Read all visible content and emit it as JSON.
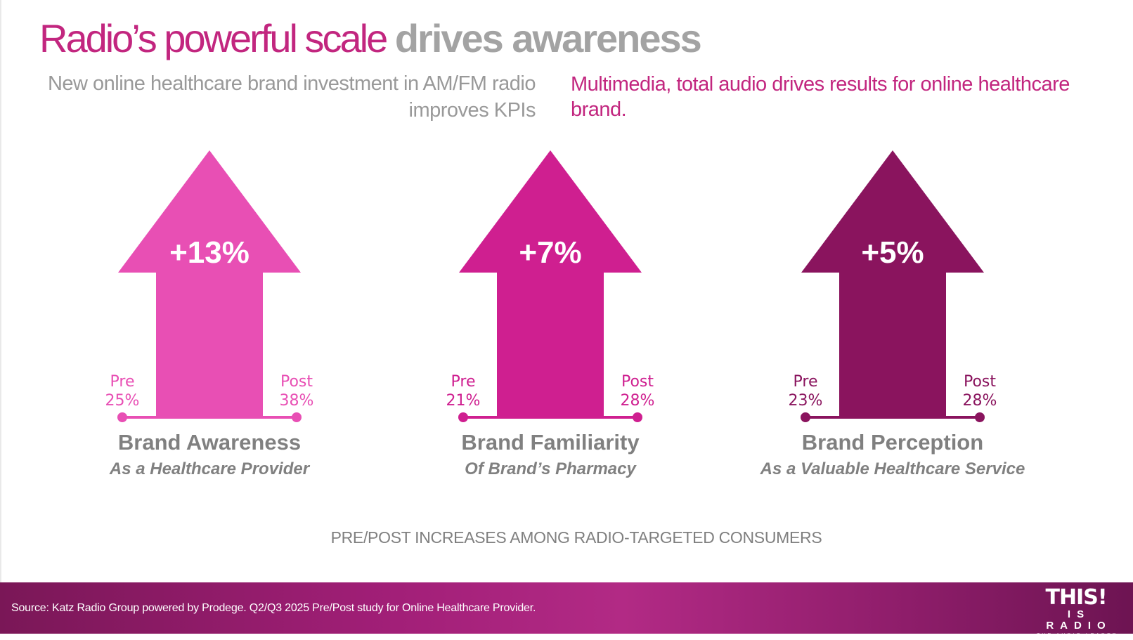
{
  "slide": {
    "title_part1": "Radio’s powerful scale ",
    "title_part2": "drives awareness",
    "subtitle_left": "New online healthcare brand investment in AM/FM radio improves KPIs",
    "subtitle_right": "Multimedia, total audio drives results for online healthcare brand.",
    "caption": "PRE/POST INCREASES AMONG RADIO-TARGETED CONSUMERS",
    "source": "Source: Katz Radio Group powered by Prodege. Q2/Q3 2025 Pre/Post study for Online Healthcare Provider.",
    "logo": {
      "line1": "THIS!",
      "line2": "IS RADIO",
      "line3": "THE AUDIO LEADER"
    }
  },
  "colors": {
    "title_pink": "#c2267f",
    "title_gray": "#a3a3a3",
    "label_gray": "#808080",
    "arrow_awareness": "#e84fb4",
    "arrow_familiarity": "#cf1f90",
    "arrow_perception": "#8a145e"
  },
  "chart_data": {
    "type": "bar",
    "title": "PRE/POST INCREASES AMONG RADIO-TARGETED CONSUMERS",
    "unit": "%",
    "categories": [
      "Brand Awareness",
      "Brand Familiarity",
      "Brand Perception"
    ],
    "subcategories": [
      "As a Healthcare Provider",
      "Of Brand’s Pharmacy",
      "As a Valuable Healthcare Service"
    ],
    "pre_label": "Pre",
    "post_label": "Post",
    "series": [
      {
        "name": "Pre",
        "values": [
          25,
          21,
          23
        ]
      },
      {
        "name": "Post",
        "values": [
          38,
          28,
          28
        ]
      }
    ],
    "change_labels": [
      "+13%",
      "+7%",
      "+5%"
    ],
    "pre_labels": [
      "25%",
      "21%",
      "23%"
    ],
    "post_labels": [
      "38%",
      "28%",
      "28%"
    ]
  }
}
